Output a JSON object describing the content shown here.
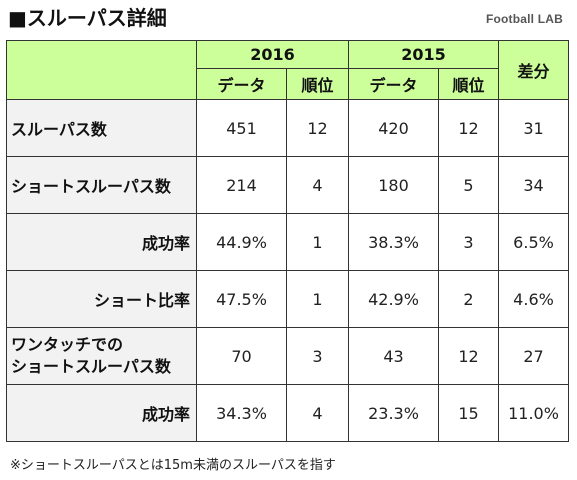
{
  "title": "■スルーパス詳細",
  "brand": "Football LAB",
  "header": {
    "year_a": "2016",
    "year_b": "2015",
    "data_label": "データ",
    "rank_label": "順位",
    "diff_label": "差分"
  },
  "rows": [
    {
      "label": "スルーパス数",
      "label_line2": "",
      "data_a": "451",
      "rank_a": "12",
      "data_b": "420",
      "rank_b": "12",
      "diff": "31"
    },
    {
      "label": "ショートスルーパス数",
      "label_line2": "",
      "data_a": "214",
      "rank_a": "4",
      "data_b": "180",
      "rank_b": "5",
      "diff": "34"
    },
    {
      "label": "成功率",
      "label_line2": "",
      "data_a": "44.9%",
      "rank_a": "1",
      "data_b": "38.3%",
      "rank_b": "3",
      "diff": "6.5%"
    },
    {
      "label": "ショート比率",
      "label_line2": "",
      "data_a": "47.5%",
      "rank_a": "1",
      "data_b": "42.9%",
      "rank_b": "2",
      "diff": "4.6%"
    },
    {
      "label": "ワンタッチでの",
      "label_line2": "ショートスルーパス数",
      "data_a": "70",
      "rank_a": "3",
      "data_b": "43",
      "rank_b": "12",
      "diff": "27"
    },
    {
      "label": "成功率",
      "label_line2": "",
      "data_a": "34.3%",
      "rank_a": "4",
      "data_b": "23.3%",
      "rank_b": "15",
      "diff": "11.0%"
    }
  ],
  "footnote": "※ショートスルーパスとは15m未満のスルーパスを指す"
}
